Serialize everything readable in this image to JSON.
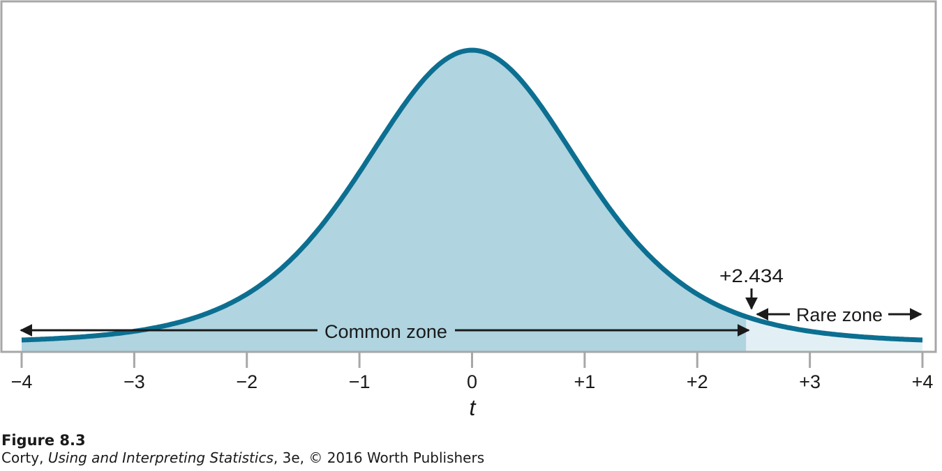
{
  "chart_data": {
    "type": "area",
    "distribution": "t",
    "xlabel": "t",
    "xlim": [
      -4,
      4
    ],
    "xticks": [
      {
        "value": -4,
        "label": "−4"
      },
      {
        "value": -3,
        "label": "−3"
      },
      {
        "value": -2,
        "label": "−2"
      },
      {
        "value": -1,
        "label": "−1"
      },
      {
        "value": 0,
        "label": "0"
      },
      {
        "value": 1,
        "label": "+1"
      },
      {
        "value": 2,
        "label": "+2"
      },
      {
        "value": 3,
        "label": "+3"
      },
      {
        "value": 4,
        "label": "+4"
      }
    ],
    "critical_value": 2.434,
    "critical_label": "+2.434",
    "regions": [
      {
        "name": "Common zone",
        "from": -4,
        "to": 2.434
      },
      {
        "name": "Rare zone",
        "from": 2.434,
        "to": 4
      }
    ],
    "grid": false,
    "legend": "none"
  },
  "colors": {
    "curve": "#0c6f91",
    "common_fill": "#b0d4e0",
    "rare_fill": "#e2f0f5",
    "frame": "#a7a7a7",
    "text": "#1a1a1a"
  },
  "caption": {
    "figure_label": "Figure 8.3",
    "author": "Corty, ",
    "book_title": "Using and Interpreting Statistics",
    "edition_info": ", 3e, © 2016 Worth Publishers"
  }
}
